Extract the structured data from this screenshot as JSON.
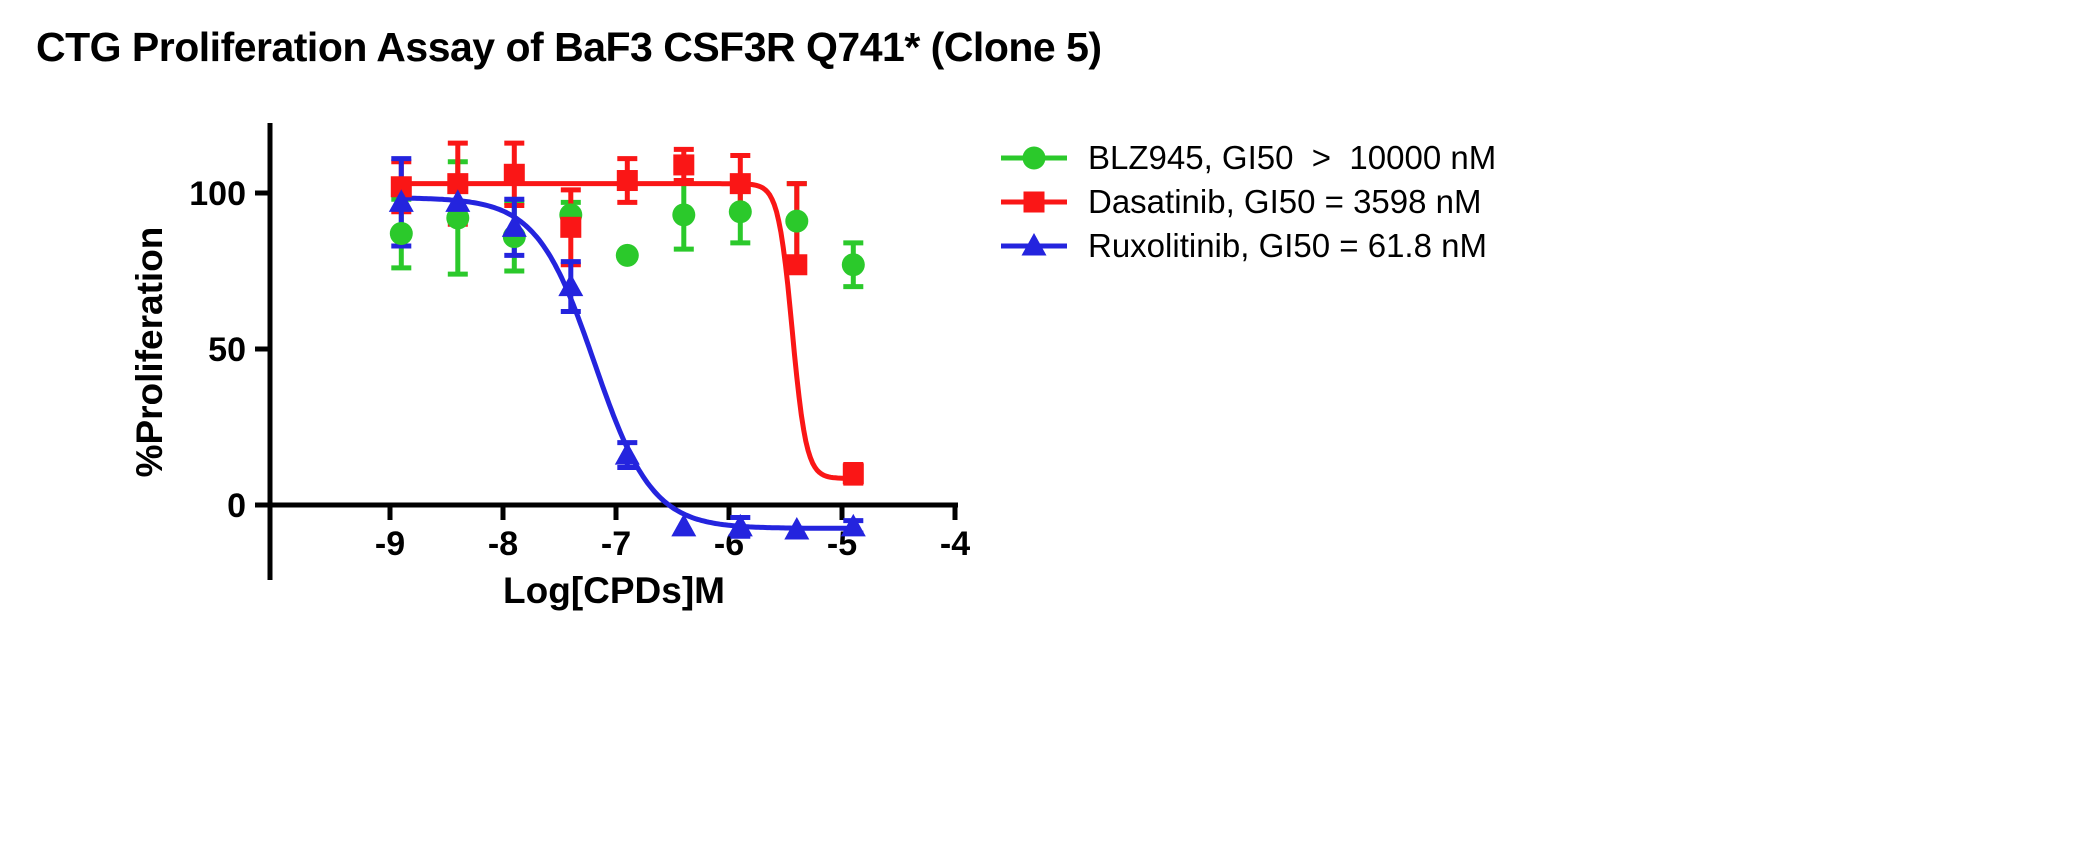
{
  "page": {
    "background": "#FFFFFF"
  },
  "chart_data": {
    "type": "scatter",
    "title": "CTG Proliferation Assay of BaF3 CSF3R Q741* (Clone 5)",
    "xlabel": "Log[CPDs]M",
    "ylabel": "%Proliferation",
    "xticks": [
      -9,
      -8,
      -7,
      -6,
      -5,
      -4
    ],
    "yticks": [
      0,
      50,
      100
    ],
    "xlim": [
      -9.6,
      -4
    ],
    "ylim": [
      -23,
      122
    ],
    "grid": false,
    "legend_position": "right",
    "axis_color": "#000000",
    "x": [
      -8.9,
      -8.4,
      -7.9,
      -7.4,
      -6.9,
      -6.4,
      -5.9,
      -5.4,
      -4.9
    ],
    "series": [
      {
        "name": "BLZ945",
        "gi50": "> 10000 nM",
        "legend": "BLZ945, GI50  >  10000 nM",
        "color": "#2BC92B",
        "marker": "circle",
        "y": [
          87,
          92,
          86,
          93,
          80,
          93,
          94,
          91,
          77
        ],
        "err": [
          11,
          18,
          11,
          4,
          0,
          11,
          10,
          12,
          7
        ],
        "fit": null
      },
      {
        "name": "Dasatinib",
        "gi50": "= 3598 nM",
        "legend": "Dasatinib, GI50 = 3598 nM",
        "color": "#FA1616",
        "marker": "square",
        "y": [
          102,
          103,
          106,
          89,
          104,
          109,
          103,
          77,
          10
        ],
        "err": [
          8,
          13,
          10,
          12,
          7,
          5,
          9,
          [
            0,
            26
          ],
          3
        ],
        "fit": {
          "top": 103,
          "bottom": 8.5,
          "logec50": -5.44,
          "hill": 7,
          "range": [
            -8.9,
            -4.85
          ]
        }
      },
      {
        "name": "Ruxolitinib",
        "gi50": "= 61.8 nM",
        "legend": "Ruxolitinib, GI50 = 61.8 nM",
        "color": "#2424DE",
        "marker": "triangle",
        "y": [
          97,
          97,
          89,
          70,
          16,
          -7,
          -7,
          -8,
          -7
        ],
        "err": [
          14,
          5,
          9,
          8,
          4,
          0,
          3,
          0,
          2
        ],
        "fit": {
          "top": 98.5,
          "bottom": -7.5,
          "logec50": -7.19,
          "hill": 1.7,
          "range": [
            -8.9,
            -4.85
          ]
        }
      }
    ]
  }
}
